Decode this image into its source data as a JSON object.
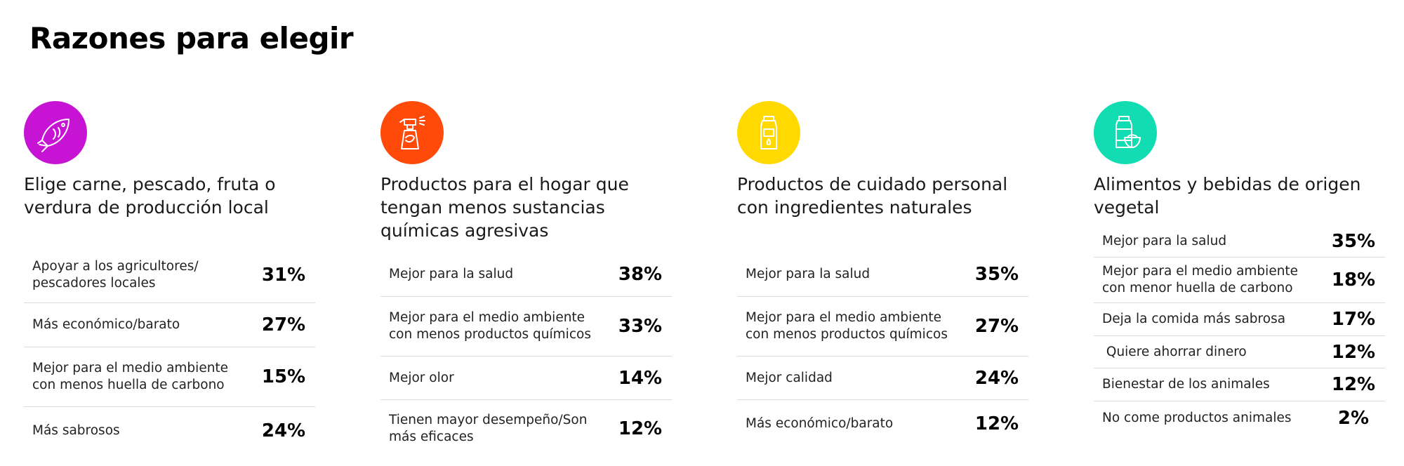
{
  "page": {
    "title": "Razones para elegir"
  },
  "colors": {
    "col1": "#c613d4",
    "col2": "#ff4a0a",
    "col3": "#ffd900",
    "col4": "#12dcb2"
  },
  "columns": [
    {
      "icon": "fish-icon",
      "title_lines": [
        "Elige carne, pescado, fruta o",
        "verdura de producción local"
      ],
      "rows": [
        {
          "label_lines": [
            "Apoyar a los agricultores/",
            "pescadores locales"
          ],
          "value": "31%"
        },
        {
          "label_lines": [
            "Más económico/barato"
          ],
          "value": "27%"
        },
        {
          "label_lines": [
            "Mejor para el medio ambiente",
            "con menos huella de carbono"
          ],
          "value": "15%"
        },
        {
          "label_lines": [
            "Más sabrosos"
          ],
          "value": "24%"
        }
      ]
    },
    {
      "icon": "spray-bottle-icon",
      "title_lines": [
        "Productos para el hogar que",
        "tengan menos sustancias",
        "químicas agresivas"
      ],
      "rows": [
        {
          "label_lines": [
            "Mejor para la salud"
          ],
          "value": "38%"
        },
        {
          "label_lines": [
            "Mejor para el medio ambiente",
            "con menos productos químicos"
          ],
          "value": "33%"
        },
        {
          "label_lines": [
            "Mejor olor"
          ],
          "value": "14%"
        },
        {
          "label_lines": [
            "Tienen mayor desempeño/Son",
            "más eficaces"
          ],
          "value": "12%"
        }
      ]
    },
    {
      "icon": "lotion-bottle-icon",
      "title_lines": [
        "Productos de cuidado personal",
        "con ingredientes naturales"
      ],
      "rows": [
        {
          "label_lines": [
            "Mejor para la salud"
          ],
          "value": "35%"
        },
        {
          "label_lines": [
            "Mejor para el medio ambiente",
            "con menos productos químicos"
          ],
          "value": "27%"
        },
        {
          "label_lines": [
            "Mejor calidad"
          ],
          "value": "24%"
        },
        {
          "label_lines": [
            "Más económico/barato"
          ],
          "value": "12%"
        }
      ]
    },
    {
      "icon": "jar-bowl-icon",
      "title_lines": [
        "Alimentos y bebidas de origen",
        "vegetal"
      ],
      "rows": [
        {
          "label_lines": [
            "Mejor para la salud"
          ],
          "value": "35%"
        },
        {
          "label_lines": [
            "Mejor para el medio ambiente",
            "con menor huella de carbono"
          ],
          "value": "18%"
        },
        {
          "label_lines": [
            "Deja la comida más sabrosa"
          ],
          "value": "17%"
        },
        {
          "label_lines": [
            " Quiere ahorrar dinero"
          ],
          "value": "12%"
        },
        {
          "label_lines": [
            "Bienestar de los animales"
          ],
          "value": "12%"
        },
        {
          "label_lines": [
            "No come productos animales"
          ],
          "value": "2%"
        }
      ]
    }
  ]
}
